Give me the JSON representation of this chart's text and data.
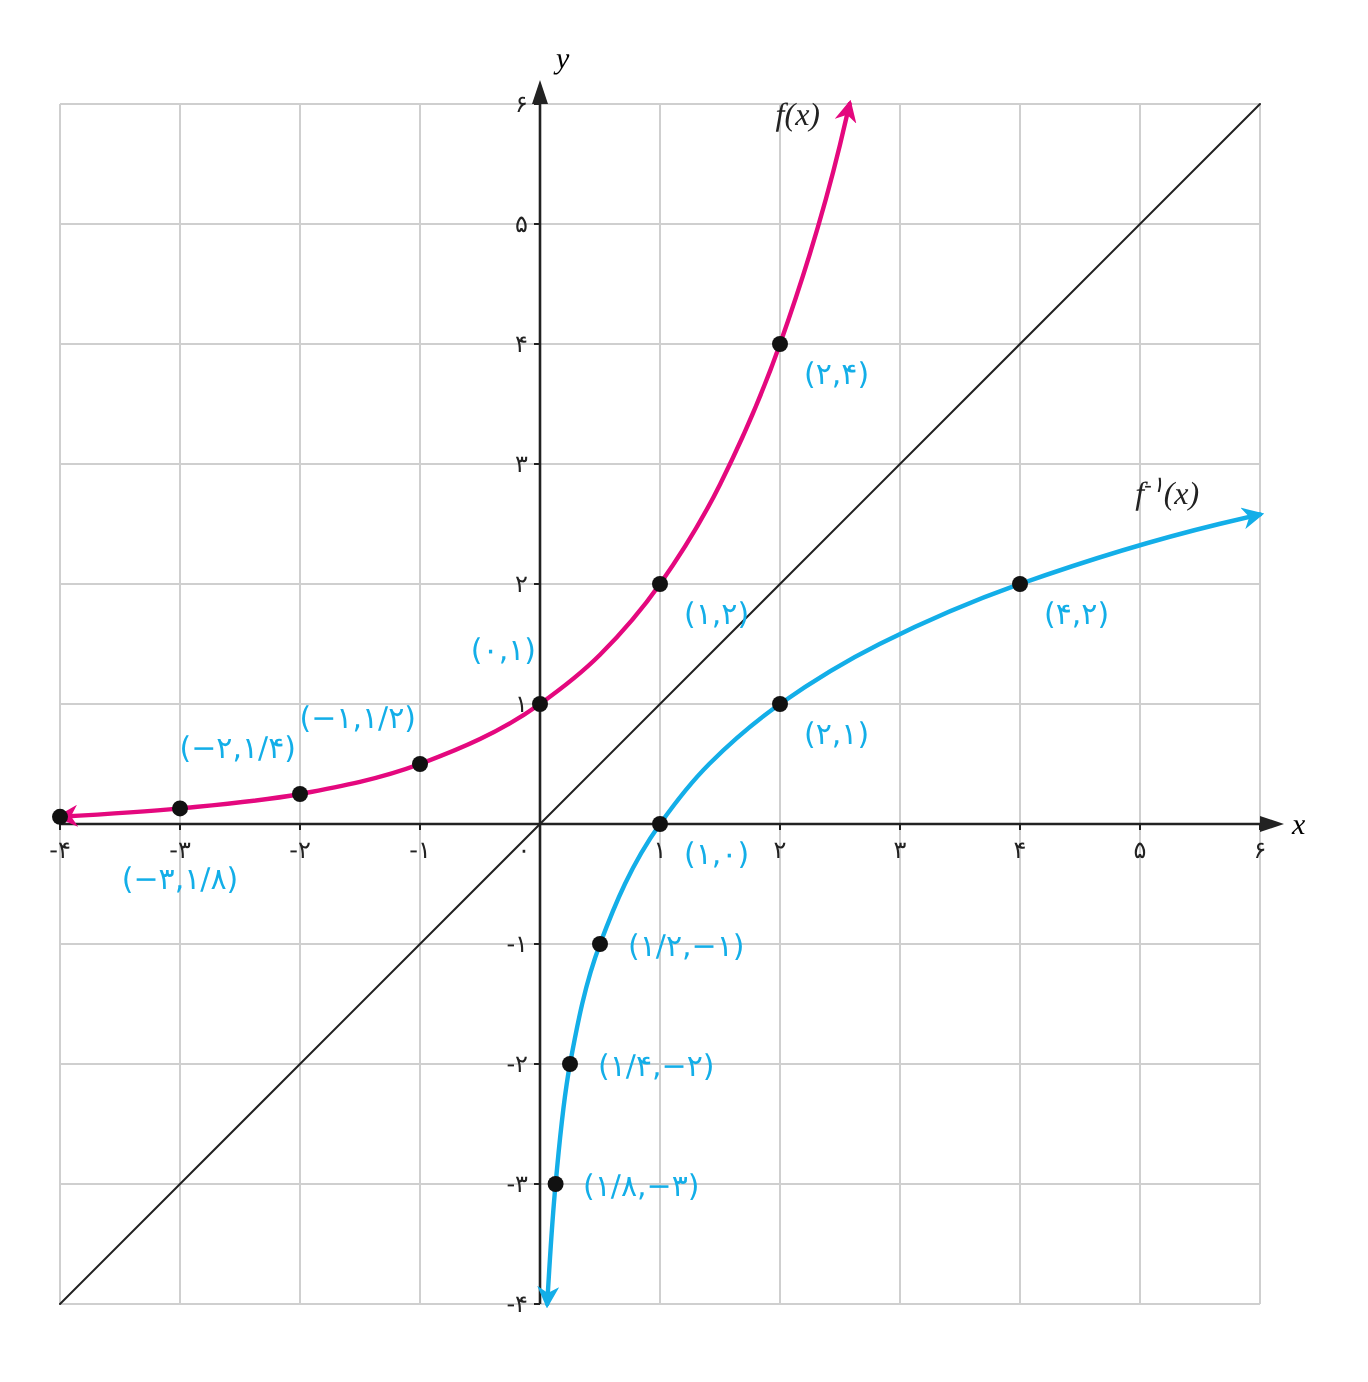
{
  "chart_data": {
    "type": "line",
    "xlabel": "x",
    "ylabel": "y",
    "xlim": [
      -4,
      6
    ],
    "ylim": [
      -4,
      6
    ],
    "xticks": [
      {
        "value": -4,
        "label": "-۴"
      },
      {
        "value": -3,
        "label": "-۳"
      },
      {
        "value": -2,
        "label": "-۲"
      },
      {
        "value": -1,
        "label": "-۱"
      },
      {
        "value": 0,
        "label": "۰"
      },
      {
        "value": 1,
        "label": "۱"
      },
      {
        "value": 2,
        "label": "۲"
      },
      {
        "value": 3,
        "label": "۳"
      },
      {
        "value": 4,
        "label": "۴"
      },
      {
        "value": 5,
        "label": "۵"
      },
      {
        "value": 6,
        "label": "۶"
      }
    ],
    "yticks": [
      {
        "value": -4,
        "label": "-۴"
      },
      {
        "value": -3,
        "label": "-۳"
      },
      {
        "value": -2,
        "label": "-۲"
      },
      {
        "value": -1,
        "label": "-۱"
      },
      {
        "value": 0,
        "label": null
      },
      {
        "value": 1,
        "label": "۱"
      },
      {
        "value": 2,
        "label": "۲"
      },
      {
        "value": 3,
        "label": "۳"
      },
      {
        "value": 4,
        "label": "۴"
      },
      {
        "value": 5,
        "label": "۵"
      },
      {
        "value": 6,
        "label": "۶"
      }
    ],
    "grid": true,
    "line_style": "solid",
    "series": [
      {
        "color": "#222222",
        "x": [
          -4,
          6
        ],
        "values": [
          -4,
          6
        ],
        "marker": "none"
      },
      {
        "name": "f(x)",
        "color": "#e4087e",
        "x": [
          -4,
          -3,
          -2,
          -1,
          0,
          0.5,
          1,
          1.5,
          2,
          2.5,
          2.58
        ],
        "values": [
          0.06,
          0.13,
          0.25,
          0.5,
          1,
          1.41,
          2,
          2.83,
          4,
          5.66,
          6
        ],
        "marker": "none"
      },
      {
        "name": "f$^{-۱}$(x)",
        "color": "#13aee8",
        "x": [
          0.06,
          0.13,
          0.25,
          0.5,
          1,
          1.41,
          2,
          2.83,
          4,
          5.66,
          6
        ],
        "values": [
          -4,
          -3,
          -2,
          -1,
          0,
          0.5,
          1,
          1.5,
          2,
          2.5,
          2.58
        ],
        "marker": "none"
      },
      {
        "type": "scatter",
        "color": "#111111",
        "x": [
          -4,
          -3,
          -2,
          -1,
          0,
          1,
          2,
          0.13,
          0.25,
          0.5,
          1,
          2,
          4
        ],
        "values": [
          0.06,
          0.13,
          0.25,
          0.5,
          1,
          2,
          4,
          -3,
          -2,
          -1,
          0,
          1,
          2
        ],
        "marker": "circle"
      }
    ],
    "annotations": [
      {
        "text": "(−۳,۱/۸)",
        "x": -3,
        "y": 0.125
      },
      {
        "text": "(−۲,۱/۴)",
        "x": -2,
        "y": 0.25
      },
      {
        "text": "(−۱,۱/۲)",
        "x": -1,
        "y": 0.5
      },
      {
        "text": "(۰,۱)",
        "x": 0,
        "y": 1
      },
      {
        "text": "(۱,۲)",
        "x": 1,
        "y": 2
      },
      {
        "text": "(۲,۴)",
        "x": 2,
        "y": 4
      },
      {
        "text": "(۱,۰)",
        "x": 1,
        "y": 0
      },
      {
        "text": "(۲,۱)",
        "x": 2,
        "y": 1
      },
      {
        "text": "(۴,۲)",
        "x": 4,
        "y": 2
      },
      {
        "text": "(۱/۲,−۱)",
        "x": 0.5,
        "y": -1
      },
      {
        "text": "(۱/۴,−۲)",
        "x": 0.25,
        "y": -2
      },
      {
        "text": "(۱/۸,−۳)",
        "x": 0.125,
        "y": -3
      }
    ]
  }
}
